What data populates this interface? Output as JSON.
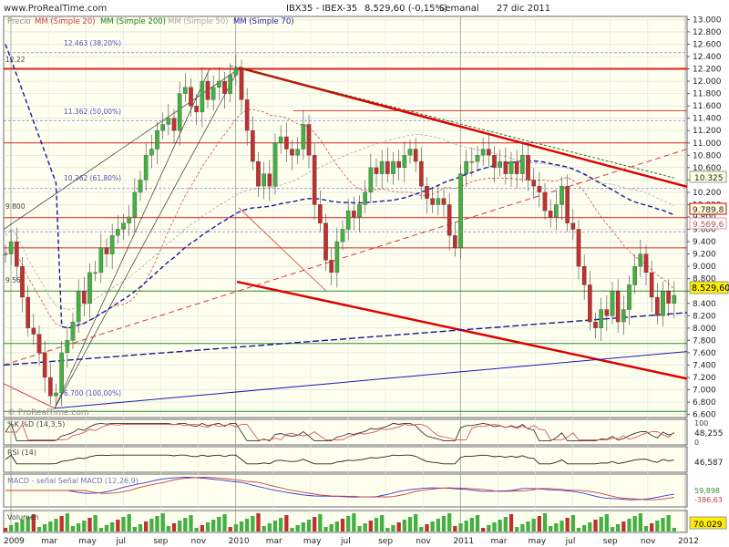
{
  "site": "www.ProRealTime.com",
  "watermark": "© ProRealTime.com",
  "header": {
    "title": "IBX35 - IBEX-35",
    "last": "8.529,60 (-0,15%)",
    "period": "Semanal",
    "date": "27 dic 2011"
  },
  "legend": [
    {
      "text": "Precio",
      "color": "#999999"
    },
    {
      "text": "MM (Simple 20)",
      "color": "#d05050"
    },
    {
      "text": "MM (Simple 200)",
      "color": "#1a7a1a"
    },
    {
      "text": "MM (Simple 50)",
      "color": "#aaaaaa"
    },
    {
      "text": "MM (Simple 70)",
      "color": "#1a1aa0"
    }
  ],
  "colors": {
    "up": "#44b044",
    "down": "#c03030",
    "red_line": "#e00000",
    "blue_line": "#1a1ab0",
    "grid": "#d9d9d9"
  },
  "chart_data": {
    "type": "candlestick",
    "y_axis": {
      "min": 6550,
      "max": 13050,
      "ticks": [
        6600,
        6800,
        7000,
        7200,
        7400,
        7600,
        7800,
        8000,
        8200,
        8400,
        8600,
        8800,
        9000,
        9200,
        9400,
        9600,
        9800,
        10000,
        10200,
        10400,
        10600,
        10800,
        11000,
        11200,
        11400,
        11600,
        11800,
        12000,
        12200,
        12400,
        12600,
        12800,
        13000
      ]
    },
    "x_axis": {
      "labels": [
        "2009",
        "mar",
        "may",
        "jul",
        "sep",
        "nov",
        "2010",
        "mar",
        "may",
        "jul",
        "sep",
        "nov",
        "2011",
        "mar",
        "may",
        "jul",
        "sep",
        "nov",
        "2012"
      ]
    },
    "price_labels": {
      "last": "8.529,60",
      "ma20": "9.569,6",
      "fib38": "10.325",
      "h9789": "9.789,8"
    },
    "chart_annotations": [
      "12.463 (38,20%)",
      "12.22",
      "11.362 (50,00%)",
      "10.262 (61,80%)",
      "9.800",
      "9.56",
      "6.700 (100,00%)"
    ],
    "key_levels": [
      12463,
      12220,
      11362,
      10262,
      9800,
      9789.8,
      9560,
      8600,
      7800,
      6700
    ],
    "series_weekly_close_approx": [
      9200,
      9400,
      9000,
      8500,
      8000,
      7900,
      7600,
      7200,
      6900,
      6950,
      7600,
      7800,
      8100,
      8600,
      8400,
      8900,
      8900,
      9300,
      9200,
      9500,
      9600,
      9700,
      9800,
      10200,
      10400,
      10800,
      10900,
      11200,
      11300,
      11400,
      11200,
      11800,
      11900,
      11600,
      11500,
      12000,
      11700,
      11900,
      12000,
      11800,
      12100,
      12200,
      11700,
      11200,
      10700,
      10300,
      10500,
      10300,
      11000,
      11100,
      10900,
      10800,
      10900,
      11300,
      10800,
      10000,
      9700,
      9100,
      8900,
      9400,
      9600,
      9900,
      9800,
      10000,
      10200,
      10600,
      10500,
      10700,
      10500,
      10700,
      10600,
      10800,
      10900,
      10700,
      10300,
      10100,
      10000,
      10100,
      10000,
      9500,
      9300,
      10500,
      10700,
      10700,
      10800,
      10900,
      10800,
      10600,
      10700,
      10500,
      10700,
      10500,
      10800,
      10400,
      10300,
      10200,
      9900,
      9800,
      10000,
      10300,
      9700,
      9600,
      9000,
      8700,
      8100,
      8000,
      8300,
      8200,
      8600,
      8100,
      8300,
      8700,
      9000,
      9200,
      8900,
      8500,
      8200,
      8600,
      8400,
      8530
    ]
  },
  "panels": {
    "stoch": {
      "label": "%K %D (14,3,5)",
      "value": "48,255",
      "scale": [
        "100",
        "0"
      ]
    },
    "rsi": {
      "label": "RSI (14)",
      "value": "46,587"
    },
    "macd": {
      "label": "MACD - señal  Señal  MACD (12,26,9)",
      "value1": "59,898",
      "value2": "-386,63"
    },
    "volume": {
      "label": "Volumen",
      "value": "70.029"
    }
  }
}
